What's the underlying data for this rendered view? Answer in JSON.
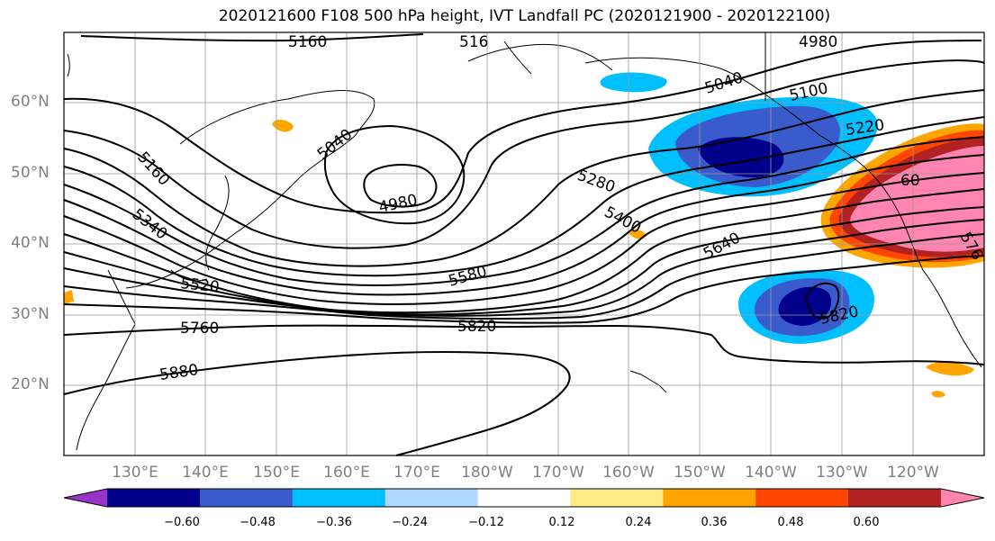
{
  "title": "2020121600 F108 500 hPa height, IVT Landfall PC (2020121900 - 2020122100)",
  "longitude_labels": [
    "130°E",
    "140°E",
    "150°E",
    "160°E",
    "170°E",
    "180°W",
    "170°W",
    "160°W",
    "150°W",
    "140°W",
    "130°W",
    "120°W"
  ],
  "latitude_labels": [
    "60°N",
    "50°N",
    "40°N",
    "30°N",
    "20°N"
  ],
  "contour_labels": [
    "5160",
    "516",
    "4980",
    "5040",
    "5100",
    "5220",
    "5160",
    "5040",
    "4980",
    "5280",
    "5400",
    "5340",
    "5520",
    "5580",
    "5640",
    "5760",
    "5820",
    "5820",
    "5880",
    "60",
    "576"
  ],
  "colorbar": {
    "colors": [
      "#9933cc",
      "#00008b",
      "#3a5bcc",
      "#00bfff",
      "#add8ff",
      "#ffffff",
      "#ffeb85",
      "#ffa500",
      "#ff4500",
      "#b22222",
      "#ff85b0"
    ],
    "tick_labels": [
      "−0.60",
      "−0.48",
      "−0.36",
      "−0.24",
      "−0.12",
      "0.12",
      "0.24",
      "0.36",
      "0.48",
      "0.60"
    ]
  }
}
